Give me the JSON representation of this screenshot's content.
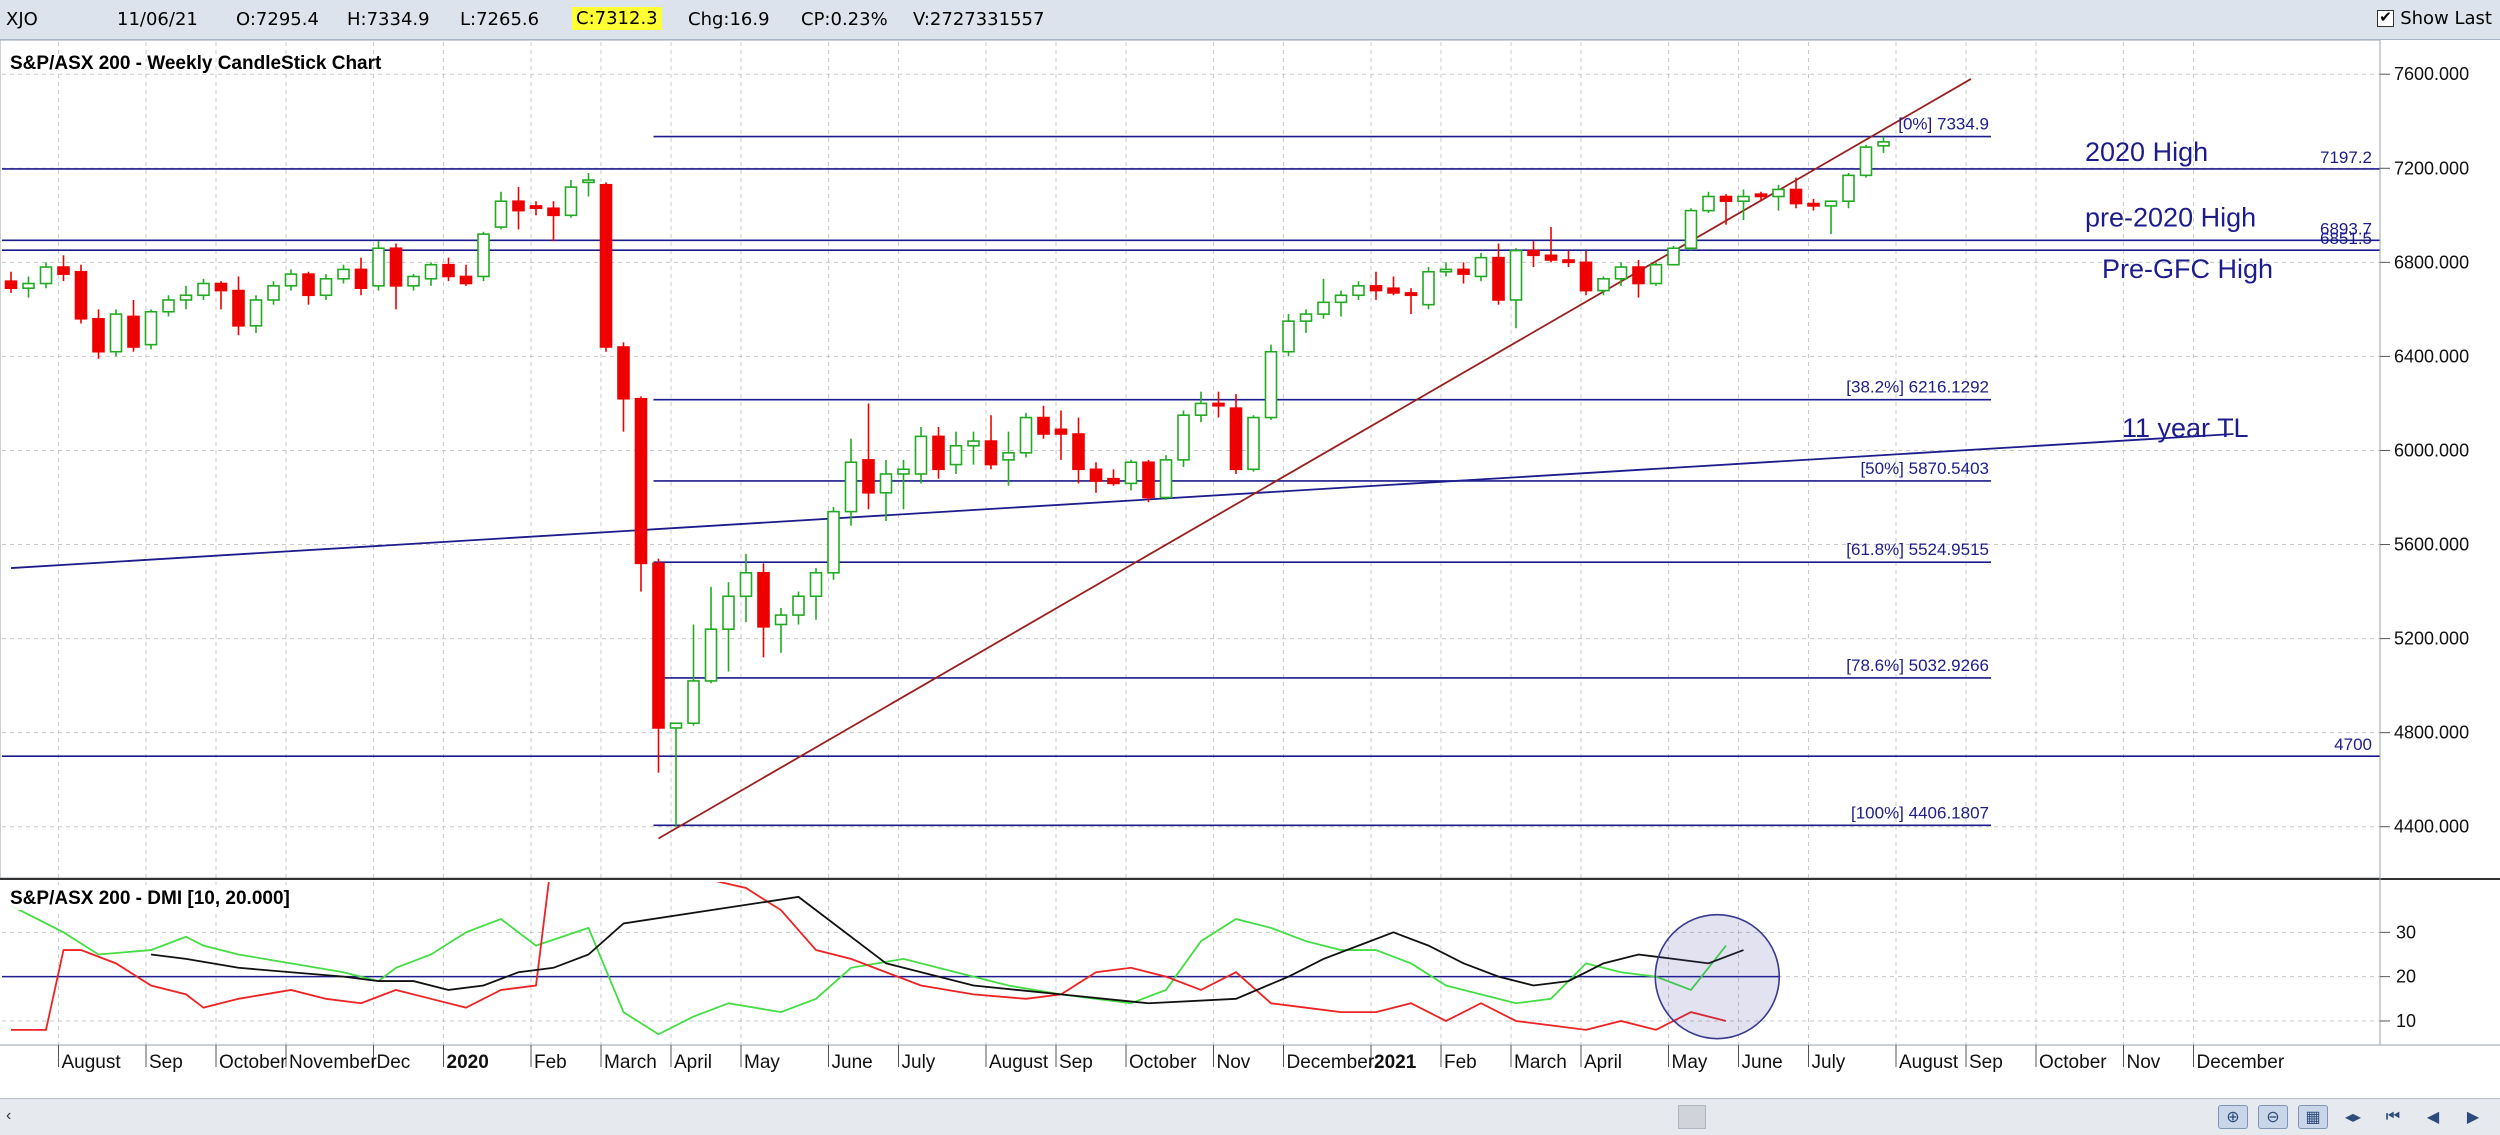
{
  "topbar": {
    "symbol": "XJO",
    "date": "11/06/21",
    "open": "O:7295.4",
    "high": "H:7334.9",
    "low": "L:7265.6",
    "close": "C:7312.3",
    "change": "Chg:16.9",
    "change_pct": "CP:0.23%",
    "volume": "V:2727331557",
    "show_last_label": "Show Last"
  },
  "colors": {
    "up": "#22aa22",
    "down": "#ee0000",
    "levels": "#1c1c8c",
    "trendline": "#9a2020",
    "dmi_plus": "#44dd44",
    "dmi_minus": "#ee2222",
    "adx": "#111111"
  },
  "chart_data": [
    {
      "type": "candlestick",
      "title": "S&P/ASX 200 - Weekly CandleStick Chart",
      "ylim": [
        4250,
        7720
      ],
      "y_ticks": [
        4400,
        4800,
        5200,
        5600,
        6000,
        6400,
        6800,
        7200,
        7600
      ],
      "y_tick_labels": [
        "4400.000",
        "4800.000",
        "5200.000",
        "5600.000",
        "6000.000",
        "6400.000",
        "6800.000",
        "7200.000",
        "7600.000"
      ],
      "x_labels": [
        {
          "label": "August",
          "x": 3
        },
        {
          "label": "Sep",
          "x": 8
        },
        {
          "label": "October",
          "x": 12
        },
        {
          "label": "November",
          "x": 16
        },
        {
          "label": "Dec",
          "x": 21
        },
        {
          "label": "2020",
          "x": 25,
          "bold": true
        },
        {
          "label": "Feb",
          "x": 30
        },
        {
          "label": "March",
          "x": 34
        },
        {
          "label": "April",
          "x": 38
        },
        {
          "label": "May",
          "x": 42
        },
        {
          "label": "June",
          "x": 47
        },
        {
          "label": "July",
          "x": 51
        },
        {
          "label": "August",
          "x": 56
        },
        {
          "label": "Sep",
          "x": 60
        },
        {
          "label": "October",
          "x": 64
        },
        {
          "label": "Nov",
          "x": 69
        },
        {
          "label": "December",
          "x": 73
        },
        {
          "label": "2021",
          "x": 78,
          "bold": true
        },
        {
          "label": "Feb",
          "x": 82
        },
        {
          "label": "March",
          "x": 86
        },
        {
          "label": "April",
          "x": 90
        },
        {
          "label": "May",
          "x": 95
        },
        {
          "label": "June",
          "x": 99
        },
        {
          "label": "July",
          "x": 103
        },
        {
          "label": "August",
          "x": 108
        },
        {
          "label": "Sep",
          "x": 112
        },
        {
          "label": "October",
          "x": 116
        },
        {
          "label": "Nov",
          "x": 121
        },
        {
          "label": "December",
          "x": 125
        }
      ],
      "candles": [
        [
          6720,
          6760,
          6670,
          6690
        ],
        [
          6690,
          6740,
          6650,
          6710
        ],
        [
          6710,
          6800,
          6690,
          6780
        ],
        [
          6780,
          6830,
          6720,
          6750
        ],
        [
          6760,
          6790,
          6540,
          6560
        ],
        [
          6560,
          6600,
          6390,
          6420
        ],
        [
          6420,
          6600,
          6400,
          6580
        ],
        [
          6570,
          6640,
          6420,
          6440
        ],
        [
          6450,
          6600,
          6430,
          6590
        ],
        [
          6590,
          6660,
          6570,
          6640
        ],
        [
          6640,
          6700,
          6600,
          6660
        ],
        [
          6660,
          6730,
          6640,
          6710
        ],
        [
          6710,
          6720,
          6600,
          6680
        ],
        [
          6680,
          6740,
          6490,
          6530
        ],
        [
          6530,
          6660,
          6500,
          6640
        ],
        [
          6640,
          6720,
          6620,
          6700
        ],
        [
          6700,
          6770,
          6680,
          6750
        ],
        [
          6750,
          6760,
          6620,
          6660
        ],
        [
          6660,
          6750,
          6640,
          6730
        ],
        [
          6730,
          6790,
          6710,
          6770
        ],
        [
          6770,
          6820,
          6660,
          6690
        ],
        [
          6700,
          6890,
          6680,
          6860
        ],
        [
          6860,
          6880,
          6600,
          6700
        ],
        [
          6700,
          6750,
          6680,
          6740
        ],
        [
          6730,
          6800,
          6700,
          6790
        ],
        [
          6790,
          6820,
          6720,
          6740
        ],
        [
          6740,
          6790,
          6700,
          6710
        ],
        [
          6740,
          6930,
          6720,
          6920
        ],
        [
          6950,
          7100,
          6940,
          7060
        ],
        [
          7060,
          7120,
          6940,
          7020
        ],
        [
          7040,
          7060,
          7000,
          7030
        ],
        [
          7030,
          7060,
          6890,
          7000
        ],
        [
          7000,
          7150,
          6990,
          7120
        ],
        [
          7140,
          7180,
          7080,
          7150
        ],
        [
          7130,
          7140,
          6420,
          6440
        ],
        [
          6440,
          6460,
          6080,
          6220
        ],
        [
          6220,
          6230,
          5400,
          5520
        ],
        [
          5520,
          5540,
          4630,
          4820
        ],
        [
          4820,
          4830,
          4400,
          4840
        ],
        [
          4840,
          5260,
          4830,
          5020
        ],
        [
          5020,
          5420,
          5010,
          5240
        ],
        [
          5240,
          5440,
          5060,
          5380
        ],
        [
          5380,
          5560,
          5270,
          5480
        ],
        [
          5480,
          5520,
          5120,
          5250
        ],
        [
          5260,
          5330,
          5140,
          5300
        ],
        [
          5300,
          5400,
          5260,
          5380
        ],
        [
          5380,
          5500,
          5280,
          5480
        ],
        [
          5480,
          5760,
          5450,
          5740
        ],
        [
          5740,
          6050,
          5680,
          5950
        ],
        [
          5960,
          6200,
          5750,
          5820
        ],
        [
          5820,
          5960,
          5700,
          5900
        ],
        [
          5900,
          5960,
          5750,
          5920
        ],
        [
          5900,
          6100,
          5860,
          6060
        ],
        [
          6060,
          6100,
          5880,
          5920
        ],
        [
          5940,
          6080,
          5900,
          6020
        ],
        [
          6020,
          6080,
          5940,
          6040
        ],
        [
          6040,
          6150,
          5920,
          5940
        ],
        [
          5960,
          6080,
          5850,
          5990
        ],
        [
          5990,
          6160,
          5970,
          6140
        ],
        [
          6140,
          6190,
          6050,
          6070
        ],
        [
          6090,
          6170,
          5960,
          6070
        ],
        [
          6070,
          6140,
          5860,
          5920
        ],
        [
          5920,
          5950,
          5820,
          5870
        ],
        [
          5880,
          5920,
          5850,
          5860
        ],
        [
          5860,
          5960,
          5830,
          5950
        ],
        [
          5950,
          5960,
          5780,
          5800
        ],
        [
          5800,
          5980,
          5790,
          5960
        ],
        [
          5960,
          6170,
          5930,
          6150
        ],
        [
          6150,
          6250,
          6120,
          6200
        ],
        [
          6200,
          6250,
          6140,
          6190
        ],
        [
          6180,
          6240,
          5900,
          5920
        ],
        [
          5920,
          6150,
          5910,
          6140
        ],
        [
          6140,
          6450,
          6130,
          6420
        ],
        [
          6420,
          6580,
          6400,
          6550
        ],
        [
          6550,
          6600,
          6500,
          6580
        ],
        [
          6580,
          6730,
          6560,
          6630
        ],
        [
          6630,
          6680,
          6570,
          6660
        ],
        [
          6660,
          6720,
          6640,
          6700
        ],
        [
          6700,
          6760,
          6640,
          6680
        ],
        [
          6690,
          6740,
          6660,
          6670
        ],
        [
          6670,
          6690,
          6580,
          6660
        ],
        [
          6620,
          6780,
          6600,
          6760
        ],
        [
          6760,
          6800,
          6740,
          6770
        ],
        [
          6770,
          6800,
          6710,
          6750
        ],
        [
          6740,
          6840,
          6720,
          6820
        ],
        [
          6820,
          6880,
          6620,
          6640
        ],
        [
          6640,
          6860,
          6520,
          6850
        ],
        [
          6850,
          6890,
          6780,
          6830
        ],
        [
          6830,
          6950,
          6800,
          6810
        ],
        [
          6810,
          6850,
          6780,
          6800
        ],
        [
          6800,
          6850,
          6660,
          6680
        ],
        [
          6680,
          6740,
          6660,
          6730
        ],
        [
          6730,
          6800,
          6700,
          6780
        ],
        [
          6780,
          6810,
          6650,
          6710
        ],
        [
          6710,
          6800,
          6700,
          6790
        ],
        [
          6790,
          6870,
          6790,
          6860
        ],
        [
          6860,
          7030,
          6850,
          7020
        ],
        [
          7020,
          7100,
          7010,
          7080
        ],
        [
          7080,
          7090,
          6960,
          7060
        ],
        [
          7060,
          7110,
          6980,
          7080
        ],
        [
          7090,
          7100,
          7060,
          7080
        ],
        [
          7080,
          7130,
          7020,
          7110
        ],
        [
          7110,
          7160,
          7030,
          7050
        ],
        [
          7050,
          7070,
          7020,
          7040
        ],
        [
          7040,
          7060,
          6920,
          7060
        ],
        [
          7060,
          7180,
          7030,
          7170
        ],
        [
          7170,
          7300,
          7160,
          7290
        ],
        [
          7295.4,
          7334.9,
          7265.6,
          7312.3
        ]
      ],
      "horizontal_levels": [
        {
          "value": 7197.2,
          "label": "7197.2",
          "callout": "2020 High"
        },
        {
          "value": 6893.7,
          "label": "6893.7",
          "callout": "pre-2020 High"
        },
        {
          "value": 6851.5,
          "label": "6851.5",
          "callout": "Pre-GFC High"
        },
        {
          "value": 4700,
          "label": "4700"
        }
      ],
      "fibonacci": {
        "start_index": 37,
        "end_index": 112,
        "levels": [
          {
            "value": 7334.9,
            "label": "[0%] 7334.9"
          },
          {
            "value": 6216.1292,
            "label": "[38.2%] 6216.1292"
          },
          {
            "value": 5870.5403,
            "label": "[50%] 5870.5403"
          },
          {
            "value": 5524.9515,
            "label": "[61.8%] 5524.9515"
          },
          {
            "value": 5032.9266,
            "label": "[78.6%] 5032.9266"
          },
          {
            "value": 4406.1807,
            "label": "[100%] 4406.1807"
          }
        ]
      },
      "trendlines": [
        {
          "name": "11 year TL",
          "from": [
            0,
            5500
          ],
          "to": [
            127,
            6070
          ],
          "label": "11 year TL"
        },
        {
          "name": "uptrend",
          "from": [
            37,
            4350
          ],
          "to": [
            112,
            7580
          ]
        }
      ]
    },
    {
      "type": "line",
      "title": "S&P/ASX 200 - DMI [10, 20.000]",
      "ylim": [
        3,
        40
      ],
      "y_ticks": [
        10,
        20,
        30
      ],
      "y_tick_labels": [
        "10",
        "20",
        "30"
      ],
      "reference_line": 20,
      "series": [
        {
          "name": "+DI",
          "color_key": "dmi_plus",
          "x": [
            0,
            3,
            5,
            8,
            10,
            11,
            13,
            16,
            19,
            21,
            22,
            24,
            26,
            28,
            30,
            33,
            35,
            37,
            39,
            41,
            44,
            46,
            48,
            51,
            54,
            57,
            60,
            62,
            64,
            66,
            68,
            70,
            72,
            74,
            76,
            78,
            80,
            82,
            84,
            86,
            88,
            90,
            92,
            94,
            96,
            98
          ],
          "values": [
            36,
            30,
            25,
            26,
            29,
            27,
            25,
            23,
            21,
            19,
            22,
            25,
            30,
            33,
            27,
            31,
            12,
            7,
            11,
            14,
            12,
            15,
            22,
            24,
            21,
            18,
            16,
            15,
            14,
            17,
            28,
            33,
            31,
            28,
            26,
            26,
            23,
            18,
            16,
            14,
            15,
            23,
            21,
            20,
            17,
            27
          ]
        },
        {
          "name": "-DI",
          "color_key": "dmi_minus",
          "x": [
            0,
            2,
            3,
            4,
            6,
            8,
            10,
            11,
            13,
            16,
            18,
            20,
            22,
            24,
            26,
            28,
            30,
            31,
            42,
            44,
            46,
            48,
            52,
            55,
            58,
            60,
            62,
            64,
            66,
            68,
            70,
            72,
            74,
            76,
            78,
            80,
            82,
            84,
            86,
            88,
            90,
            92,
            94,
            96,
            98
          ],
          "values": [
            8,
            8,
            26,
            26,
            23,
            18,
            16,
            13,
            15,
            17,
            15,
            14,
            17,
            15,
            13,
            17,
            18,
            50,
            40,
            35,
            26,
            24,
            18,
            16,
            15,
            16,
            21,
            22,
            20,
            17,
            21,
            14,
            13,
            12,
            12,
            14,
            10,
            14,
            10,
            9,
            8,
            10,
            8,
            12,
            10
          ]
        },
        {
          "name": "ADX",
          "color_key": "adx",
          "x": [
            8,
            10,
            13,
            16,
            19,
            21,
            23,
            25,
            27,
            29,
            31,
            33,
            35,
            45,
            50,
            55,
            60,
            65,
            70,
            73,
            75,
            77,
            79,
            81,
            83,
            85,
            87,
            89,
            91,
            93,
            95,
            97,
            99
          ],
          "values": [
            25,
            24,
            22,
            21,
            20,
            19,
            19,
            17,
            18,
            21,
            22,
            25,
            32,
            38,
            23,
            18,
            16,
            14,
            15,
            20,
            24,
            27,
            30,
            27,
            23,
            20,
            18,
            19,
            23,
            25,
            24,
            23,
            26
          ]
        }
      ],
      "annotation_circle": {
        "x": 97.5,
        "y": 20
      }
    }
  ]
}
